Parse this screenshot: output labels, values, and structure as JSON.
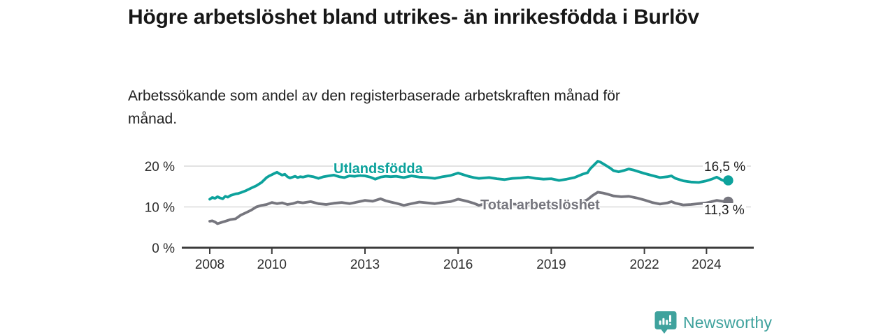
{
  "header": {
    "title": "Högre arbetslöshet bland utrikes- än inrikesfödda i Burlöv",
    "subtitle": "Arbetssökande som andel av den registerbaserade arbetskraften månad för månad."
  },
  "chart_data": {
    "type": "line",
    "title": "Högre arbetslöshet bland utrikes- än inrikesfödda i Burlöv",
    "subtitle": "Arbetssökande som andel av den registerbaserade arbetskraften månad för månad.",
    "unit": "%",
    "x_range": [
      2007.2,
      2025.4
    ],
    "y_range": [
      0,
      22
    ],
    "grid": true,
    "legend_position": "inline-on-line",
    "x_ticks": [
      2008,
      2010,
      2013,
      2016,
      2019,
      2022,
      2024
    ],
    "x_tick_labels": [
      "2008",
      "2010",
      "2013",
      "2016",
      "2019",
      "2022",
      "2024"
    ],
    "y_ticks": [
      0,
      10,
      20
    ],
    "y_tick_labels": [
      "0 %",
      "10 %",
      "20 %"
    ],
    "colors": {
      "utlandsfodda": "#0da29c",
      "total": "#76767e",
      "grid": "#d9d9d9",
      "axis": "#3b3b3b"
    },
    "series": [
      {
        "name": "Utlandsfödda",
        "color": "#0da29c",
        "end_value": 16.5,
        "end_label": "16,5 %",
        "points": [
          [
            2008.0,
            11.9
          ],
          [
            2008.08,
            12.3
          ],
          [
            2008.17,
            12.1
          ],
          [
            2008.25,
            12.5
          ],
          [
            2008.33,
            12.2
          ],
          [
            2008.42,
            12.0
          ],
          [
            2008.5,
            12.6
          ],
          [
            2008.58,
            12.4
          ],
          [
            2008.67,
            12.8
          ],
          [
            2008.75,
            13.0
          ],
          [
            2008.83,
            13.2
          ],
          [
            2008.92,
            13.3
          ],
          [
            2009.0,
            13.5
          ],
          [
            2009.17,
            14.0
          ],
          [
            2009.33,
            14.6
          ],
          [
            2009.5,
            15.2
          ],
          [
            2009.67,
            16.0
          ],
          [
            2009.83,
            17.2
          ],
          [
            2009.92,
            17.6
          ],
          [
            2010.0,
            17.9
          ],
          [
            2010.08,
            18.2
          ],
          [
            2010.17,
            18.5
          ],
          [
            2010.25,
            18.1
          ],
          [
            2010.33,
            17.8
          ],
          [
            2010.42,
            18.0
          ],
          [
            2010.5,
            17.4
          ],
          [
            2010.58,
            17.1
          ],
          [
            2010.67,
            17.3
          ],
          [
            2010.75,
            17.5
          ],
          [
            2010.83,
            17.2
          ],
          [
            2010.92,
            17.4
          ],
          [
            2011.0,
            17.3
          ],
          [
            2011.17,
            17.6
          ],
          [
            2011.33,
            17.4
          ],
          [
            2011.5,
            17.0
          ],
          [
            2011.67,
            17.4
          ],
          [
            2011.83,
            17.6
          ],
          [
            2012.0,
            17.8
          ],
          [
            2012.17,
            17.4
          ],
          [
            2012.33,
            17.2
          ],
          [
            2012.5,
            17.6
          ],
          [
            2012.67,
            17.5
          ],
          [
            2012.83,
            17.7
          ],
          [
            2013.0,
            17.6
          ],
          [
            2013.17,
            17.3
          ],
          [
            2013.33,
            16.8
          ],
          [
            2013.5,
            17.3
          ],
          [
            2013.67,
            17.5
          ],
          [
            2013.83,
            17.4
          ],
          [
            2014.0,
            17.5
          ],
          [
            2014.25,
            17.2
          ],
          [
            2014.5,
            17.6
          ],
          [
            2014.75,
            17.3
          ],
          [
            2015.0,
            17.2
          ],
          [
            2015.25,
            17.0
          ],
          [
            2015.5,
            17.4
          ],
          [
            2015.75,
            17.7
          ],
          [
            2016.0,
            18.3
          ],
          [
            2016.17,
            17.9
          ],
          [
            2016.33,
            17.5
          ],
          [
            2016.5,
            17.2
          ],
          [
            2016.67,
            17.0
          ],
          [
            2016.83,
            17.1
          ],
          [
            2017.0,
            17.2
          ],
          [
            2017.25,
            16.9
          ],
          [
            2017.5,
            16.7
          ],
          [
            2017.75,
            17.0
          ],
          [
            2018.0,
            17.1
          ],
          [
            2018.25,
            17.3
          ],
          [
            2018.5,
            17.0
          ],
          [
            2018.75,
            16.8
          ],
          [
            2019.0,
            16.9
          ],
          [
            2019.25,
            16.5
          ],
          [
            2019.5,
            16.8
          ],
          [
            2019.75,
            17.2
          ],
          [
            2020.0,
            18.0
          ],
          [
            2020.17,
            18.4
          ],
          [
            2020.25,
            19.3
          ],
          [
            2020.42,
            20.6
          ],
          [
            2020.5,
            21.2
          ],
          [
            2020.58,
            21.0
          ],
          [
            2020.75,
            20.2
          ],
          [
            2020.92,
            19.4
          ],
          [
            2021.0,
            18.9
          ],
          [
            2021.17,
            18.6
          ],
          [
            2021.33,
            18.9
          ],
          [
            2021.5,
            19.3
          ],
          [
            2021.67,
            19.0
          ],
          [
            2021.83,
            18.6
          ],
          [
            2022.0,
            18.2
          ],
          [
            2022.25,
            17.7
          ],
          [
            2022.5,
            17.2
          ],
          [
            2022.75,
            17.4
          ],
          [
            2022.87,
            17.6
          ],
          [
            2023.0,
            17.0
          ],
          [
            2023.25,
            16.4
          ],
          [
            2023.5,
            16.1
          ],
          [
            2023.75,
            16.0
          ],
          [
            2024.0,
            16.4
          ],
          [
            2024.17,
            16.8
          ],
          [
            2024.33,
            17.3
          ],
          [
            2024.5,
            16.6
          ],
          [
            2024.6,
            16.3
          ],
          [
            2024.7,
            16.5
          ]
        ]
      },
      {
        "name": "Total arbetslöshet",
        "color": "#76767e",
        "end_value": 11.3,
        "end_label": "11,3 %",
        "points": [
          [
            2008.0,
            6.5
          ],
          [
            2008.08,
            6.6
          ],
          [
            2008.17,
            6.3
          ],
          [
            2008.25,
            5.9
          ],
          [
            2008.33,
            6.1
          ],
          [
            2008.42,
            6.3
          ],
          [
            2008.5,
            6.5
          ],
          [
            2008.67,
            6.9
          ],
          [
            2008.83,
            7.1
          ],
          [
            2009.0,
            8.0
          ],
          [
            2009.17,
            8.6
          ],
          [
            2009.33,
            9.2
          ],
          [
            2009.5,
            10.0
          ],
          [
            2009.67,
            10.4
          ],
          [
            2009.83,
            10.6
          ],
          [
            2010.0,
            11.1
          ],
          [
            2010.17,
            10.8
          ],
          [
            2010.33,
            11.0
          ],
          [
            2010.5,
            10.6
          ],
          [
            2010.67,
            10.8
          ],
          [
            2010.83,
            11.2
          ],
          [
            2011.0,
            11.0
          ],
          [
            2011.25,
            11.3
          ],
          [
            2011.5,
            10.8
          ],
          [
            2011.75,
            10.6
          ],
          [
            2012.0,
            10.9
          ],
          [
            2012.25,
            11.1
          ],
          [
            2012.5,
            10.8
          ],
          [
            2012.75,
            11.2
          ],
          [
            2013.0,
            11.6
          ],
          [
            2013.25,
            11.4
          ],
          [
            2013.5,
            12.0
          ],
          [
            2013.67,
            11.5
          ],
          [
            2013.83,
            11.2
          ],
          [
            2014.0,
            10.9
          ],
          [
            2014.25,
            10.4
          ],
          [
            2014.5,
            10.8
          ],
          [
            2014.75,
            11.2
          ],
          [
            2015.0,
            11.0
          ],
          [
            2015.25,
            10.8
          ],
          [
            2015.5,
            11.1
          ],
          [
            2015.75,
            11.3
          ],
          [
            2016.0,
            11.9
          ],
          [
            2016.17,
            11.6
          ],
          [
            2016.33,
            11.3
          ],
          [
            2016.5,
            10.9
          ],
          [
            2016.67,
            10.4
          ],
          [
            2016.83,
            10.7
          ],
          [
            2017.0,
            10.6
          ],
          [
            2017.25,
            10.8
          ],
          [
            2017.5,
            10.5
          ],
          [
            2017.75,
            10.7
          ],
          [
            2018.0,
            10.6
          ],
          [
            2018.25,
            10.4
          ],
          [
            2018.5,
            10.6
          ],
          [
            2018.75,
            10.5
          ],
          [
            2019.0,
            10.3
          ],
          [
            2019.25,
            10.2
          ],
          [
            2019.5,
            10.4
          ],
          [
            2019.75,
            10.7
          ],
          [
            2020.0,
            11.2
          ],
          [
            2020.17,
            11.8
          ],
          [
            2020.33,
            12.8
          ],
          [
            2020.5,
            13.6
          ],
          [
            2020.67,
            13.4
          ],
          [
            2020.83,
            13.1
          ],
          [
            2021.0,
            12.7
          ],
          [
            2021.25,
            12.5
          ],
          [
            2021.5,
            12.6
          ],
          [
            2021.75,
            12.2
          ],
          [
            2022.0,
            11.7
          ],
          [
            2022.25,
            11.1
          ],
          [
            2022.5,
            10.7
          ],
          [
            2022.75,
            11.0
          ],
          [
            2022.87,
            11.3
          ],
          [
            2023.0,
            10.9
          ],
          [
            2023.25,
            10.5
          ],
          [
            2023.5,
            10.6
          ],
          [
            2023.75,
            10.8
          ],
          [
            2024.0,
            11.0
          ],
          [
            2024.17,
            11.3
          ],
          [
            2024.33,
            11.6
          ],
          [
            2024.5,
            11.4
          ],
          [
            2024.7,
            11.3
          ]
        ]
      }
    ]
  },
  "footer": {
    "brand": "Newsworthy",
    "brand_color": "#3fa29d"
  }
}
